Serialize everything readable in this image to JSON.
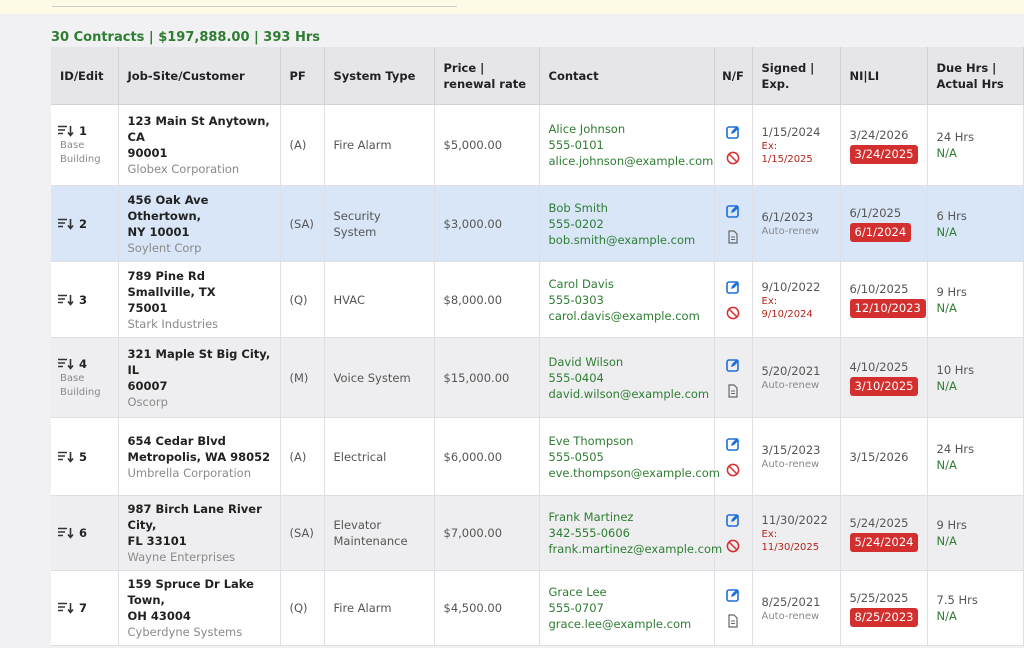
{
  "summary": "30 Contracts | $197,888.00 | 393 Hrs",
  "columns": {
    "id_edit": "ID/Edit",
    "job_site": "Job-Site/Customer",
    "pf": "PF",
    "system_type": "System Type",
    "price_line1": "Price |",
    "price_line2": "renewal rate",
    "contact": "Contact",
    "nf": "N/F",
    "signed_line1": "Signed |",
    "signed_line2": "Exp.",
    "ni_li": "NI|LI",
    "due_line1": "Due Hrs |",
    "due_line2": "Actual Hrs"
  },
  "rows": [
    {
      "id": "1",
      "sub1": "Base",
      "sub2": "Building",
      "addr1": "123 Main St Anytown, CA",
      "addr2": "90001",
      "customer": "Globex Corporation",
      "pf": "(A)",
      "sys1": "Fire Alarm",
      "sys2": "",
      "price": "$5,000.00",
      "contact_name": "Alice Johnson",
      "phone": "555-0101",
      "email": "alice.johnson@example.com",
      "nf_second": "ban-icon",
      "signed": "1/15/2024",
      "exp1": "Ex: 1/15/2025",
      "exp2": "",
      "auto": "",
      "ni": "3/24/2026",
      "li": "3/24/2025",
      "due": "24 Hrs",
      "actual": "N/A"
    },
    {
      "id": "2",
      "sub1": "",
      "sub2": "",
      "addr1": "456 Oak Ave Othertown,",
      "addr2": "NY 10001",
      "customer": "Soylent Corp",
      "pf": "(SA)",
      "sys1": "Security System",
      "sys2": "",
      "price": "$3,000.00",
      "contact_name": "Bob Smith",
      "phone": "555-0202",
      "email": "bob.smith@example.com",
      "nf_second": "document-icon",
      "signed": "6/1/2023",
      "exp1": "",
      "exp2": "",
      "auto": "Auto-renew",
      "ni": "6/1/2025",
      "li": "6/1/2024",
      "due": "6 Hrs",
      "actual": "N/A"
    },
    {
      "id": "3",
      "sub1": "",
      "sub2": "",
      "addr1": "789 Pine Rd Smallville, TX",
      "addr2": "75001",
      "customer": "Stark Industries",
      "pf": "(Q)",
      "sys1": "HVAC",
      "sys2": "",
      "price": "$8,000.00",
      "contact_name": "Carol Davis",
      "phone": "555-0303",
      "email": "carol.davis@example.com",
      "nf_second": "ban-icon",
      "signed": "9/10/2022",
      "exp1": "Ex: 9/10/2024",
      "exp2": "",
      "auto": "",
      "ni": "6/10/2025",
      "li": "12/10/2023",
      "due": "9 Hrs",
      "actual": "N/A"
    },
    {
      "id": "4",
      "sub1": "Base",
      "sub2": "Building",
      "addr1": "321 Maple St Big City, IL",
      "addr2": "60007",
      "customer": "Oscorp",
      "pf": "(M)",
      "sys1": "Voice System",
      "sys2": "",
      "price": "$15,000.00",
      "contact_name": "David Wilson",
      "phone": "555-0404",
      "email": "david.wilson@example.com",
      "nf_second": "document-icon",
      "signed": "5/20/2021",
      "exp1": "",
      "exp2": "",
      "auto": "Auto-renew",
      "ni": "4/10/2025",
      "li": "3/10/2025",
      "due": "10 Hrs",
      "actual": "N/A"
    },
    {
      "id": "5",
      "sub1": "",
      "sub2": "",
      "addr1": "654 Cedar Blvd",
      "addr2": "Metropolis, WA 98052",
      "customer": "Umbrella Corporation",
      "pf": "(A)",
      "sys1": "Electrical",
      "sys2": "",
      "price": "$6,000.00",
      "contact_name": "Eve Thompson",
      "phone": "555-0505",
      "email": "eve.thompson@example.com",
      "nf_second": "ban-icon",
      "signed": "3/15/2023",
      "exp1": "",
      "exp2": "",
      "auto": "Auto-renew",
      "ni": "3/15/2026",
      "li": "",
      "due": "24 Hrs",
      "actual": "N/A"
    },
    {
      "id": "6",
      "sub1": "",
      "sub2": "",
      "addr1": "987 Birch Lane River City,",
      "addr2": "FL 33101",
      "customer": "Wayne Enterprises",
      "pf": "(SA)",
      "sys1": "Elevator",
      "sys2": "Maintenance",
      "price": "$7,000.00",
      "contact_name": "Frank Martinez",
      "phone": "342-555-0606",
      "email": "frank.martinez@example.com",
      "nf_second": "ban-icon",
      "signed": "11/30/2022",
      "exp1": "Ex:",
      "exp2": "11/30/2025",
      "auto": "",
      "ni": "5/24/2025",
      "li": "5/24/2024",
      "due": "9 Hrs",
      "actual": "N/A"
    },
    {
      "id": "7",
      "sub1": "",
      "sub2": "",
      "addr1": "159 Spruce Dr Lake Town,",
      "addr2": "OH 43004",
      "customer": "Cyberdyne Systems",
      "pf": "(Q)",
      "sys1": "Fire Alarm",
      "sys2": "",
      "price": "$4,500.00",
      "contact_name": "Grace Lee",
      "phone": "555-0707",
      "email": "grace.lee@example.com",
      "nf_second": "document-icon",
      "signed": "8/25/2021",
      "exp1": "",
      "exp2": "",
      "auto": "Auto-renew",
      "ni": "5/25/2025",
      "li": "8/25/2023",
      "due": "7.5 Hrs",
      "actual": "N/A"
    }
  ],
  "colors": {
    "accent_green": "#2e7d32",
    "badge_red": "#d32f2f",
    "selected_row": "#d8e6f8",
    "icon_blue": "#1e6fd9"
  }
}
